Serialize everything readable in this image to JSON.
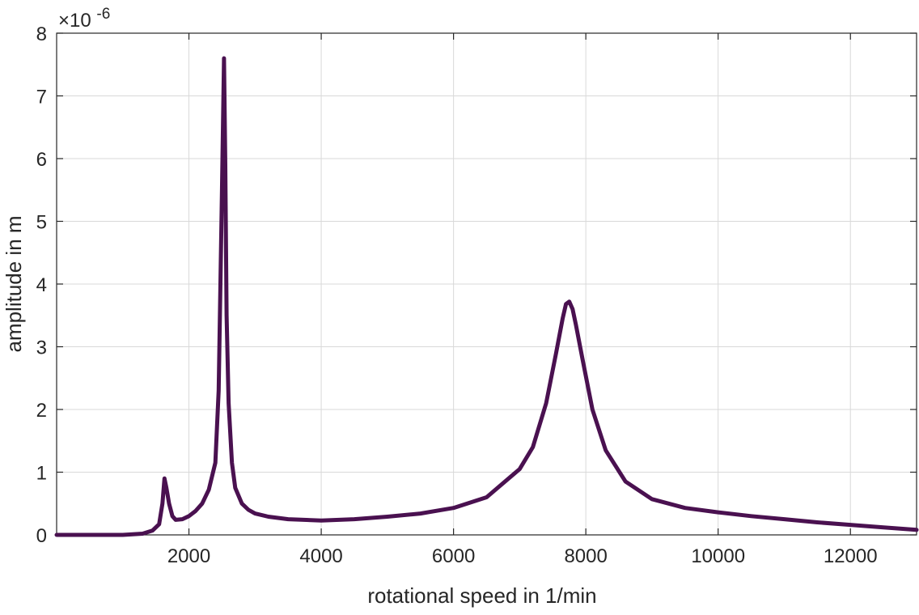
{
  "chart_data": {
    "type": "line",
    "title": "",
    "xlabel": "rotational speed in 1/min",
    "ylabel": "amplitude in m",
    "y_exponent_base": "×10",
    "y_exponent_power": "-6",
    "xlim": [
      0,
      13000
    ],
    "ylim": [
      0,
      8
    ],
    "x_ticks": [
      2000,
      4000,
      6000,
      8000,
      10000,
      12000
    ],
    "x_tick_labels": [
      "2000",
      "4000",
      "6000",
      "8000",
      "10000",
      "12000"
    ],
    "y_ticks": [
      0,
      1,
      2,
      3,
      4,
      5,
      6,
      7,
      8
    ],
    "y_tick_labels": [
      "0",
      "1",
      "2",
      "3",
      "4",
      "5",
      "6",
      "7",
      "8"
    ],
    "grid": true,
    "series": [
      {
        "color": "#4a1150",
        "x": [
          0,
          1000,
          1300,
          1450,
          1550,
          1600,
          1630,
          1660,
          1700,
          1750,
          1800,
          1900,
          2000,
          2100,
          2200,
          2300,
          2400,
          2450,
          2500,
          2530,
          2550,
          2570,
          2600,
          2650,
          2700,
          2800,
          2900,
          3000,
          3200,
          3500,
          4000,
          4500,
          5000,
          5500,
          6000,
          6500,
          7000,
          7200,
          7400,
          7550,
          7650,
          7700,
          7750,
          7800,
          7850,
          7950,
          8100,
          8300,
          8600,
          9000,
          9500,
          10000,
          10500,
          11000,
          11500,
          12000,
          12500,
          13000
        ],
        "y": [
          0,
          0,
          0.02,
          0.07,
          0.17,
          0.5,
          0.9,
          0.75,
          0.5,
          0.3,
          0.24,
          0.25,
          0.3,
          0.38,
          0.5,
          0.72,
          1.15,
          2.3,
          5.5,
          7.6,
          5.9,
          3.5,
          2.1,
          1.15,
          0.75,
          0.5,
          0.4,
          0.34,
          0.29,
          0.25,
          0.23,
          0.25,
          0.29,
          0.34,
          0.43,
          0.6,
          1.05,
          1.4,
          2.1,
          2.9,
          3.45,
          3.68,
          3.72,
          3.6,
          3.35,
          2.8,
          2.0,
          1.35,
          0.85,
          0.57,
          0.43,
          0.36,
          0.3,
          0.25,
          0.2,
          0.16,
          0.12,
          0.08
        ]
      }
    ]
  }
}
